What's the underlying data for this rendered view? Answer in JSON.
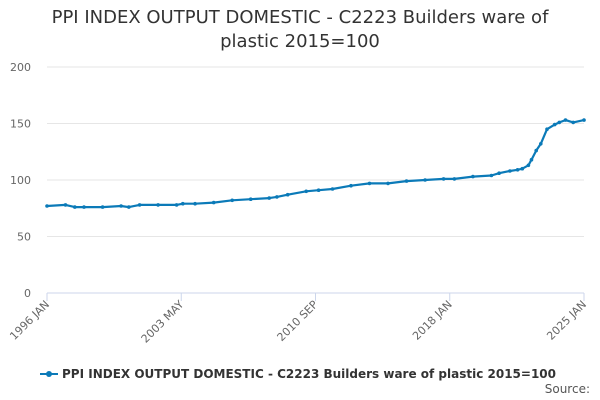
{
  "chart_data": {
    "type": "line",
    "title": "PPI INDEX OUTPUT DOMESTIC - C2223 Builders ware of plastic 2015=100",
    "xlabel": "",
    "ylabel": "",
    "ylim": [
      0,
      200
    ],
    "yticks": [
      0,
      50,
      100,
      150,
      200
    ],
    "grid": true,
    "legend_placement": "bottom",
    "x_tick_labels": [
      "1996 JAN",
      "2003 MAY",
      "2010 SEP",
      "2018 JAN",
      "2025 JAN"
    ],
    "x_range": [
      "1996-01",
      "2025-01"
    ],
    "series": [
      {
        "name": "PPI INDEX OUTPUT DOMESTIC - C2223 Builders ware of plastic 2015=100",
        "color": "#0b7ab8",
        "x": [
          "1996-01",
          "1997-01",
          "1997-07",
          "1998-01",
          "1999-01",
          "2000-01",
          "2000-06",
          "2001-01",
          "2002-01",
          "2003-01",
          "2003-05",
          "2004-01",
          "2005-01",
          "2006-01",
          "2007-01",
          "2008-01",
          "2008-06",
          "2009-01",
          "2010-01",
          "2010-09",
          "2011-06",
          "2012-06",
          "2013-06",
          "2014-06",
          "2015-06",
          "2016-06",
          "2017-06",
          "2018-01",
          "2019-01",
          "2020-01",
          "2020-06",
          "2021-01",
          "2021-06",
          "2021-09",
          "2022-01",
          "2022-03",
          "2022-06",
          "2022-09",
          "2023-01",
          "2023-06",
          "2023-09",
          "2024-01",
          "2024-06",
          "2025-01"
        ],
        "values": [
          77,
          78,
          76,
          76,
          76,
          77,
          76,
          78,
          78,
          78,
          79,
          79,
          80,
          82,
          83,
          84,
          85,
          87,
          90,
          91,
          92,
          95,
          97,
          97,
          99,
          100,
          101,
          101,
          103,
          104,
          106,
          108,
          109,
          110,
          113,
          118,
          126,
          132,
          145,
          149,
          151,
          153,
          151,
          153
        ]
      }
    ]
  },
  "source_label": "Source:"
}
